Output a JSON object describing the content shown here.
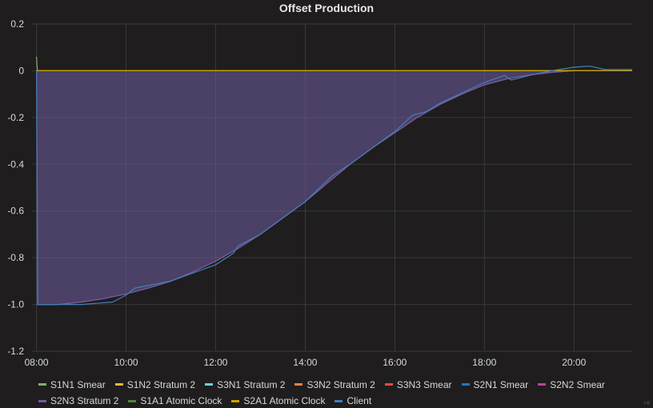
{
  "panel": {
    "title": "Offset Production"
  },
  "chart_data": {
    "type": "line",
    "title": "Offset Production",
    "x_tick_labels": [
      "08:00",
      "10:00",
      "12:00",
      "14:00",
      "16:00",
      "18:00",
      "20:00"
    ],
    "x_tick_hours": [
      8,
      10,
      12,
      14,
      16,
      18,
      20
    ],
    "xlim_hours": [
      7.9,
      21.3
    ],
    "y_tick_labels": [
      "0.2",
      "0",
      "-0.2",
      "-0.4",
      "-0.6",
      "-0.8",
      "-1.0",
      "-1.2"
    ],
    "y_tick_values": [
      0.2,
      0,
      -0.2,
      -0.4,
      -0.6,
      -0.8,
      -1.0,
      -1.2
    ],
    "ylim": [
      -1.2,
      0.2
    ],
    "grid": true,
    "legend_position": "bottom",
    "series": [
      {
        "name": "S1N1 Smear",
        "color": "#7eb26d",
        "points": [
          [
            8.0,
            0.06
          ],
          [
            8.02,
            0.0
          ],
          [
            21.3,
            0.0
          ]
        ]
      },
      {
        "name": "S1N2 Stratum 2",
        "color": "#eab839",
        "points": [
          [
            8.0,
            0.0
          ],
          [
            21.3,
            0.0
          ]
        ]
      },
      {
        "name": "S3N1 Stratum 2",
        "color": "#6ed0e0",
        "points": [
          [
            8.0,
            0.0
          ],
          [
            21.3,
            0.0
          ]
        ]
      },
      {
        "name": "S3N2 Stratum 2",
        "color": "#ef843c",
        "points": [
          [
            8.0,
            0.0
          ],
          [
            21.3,
            0.0
          ]
        ]
      },
      {
        "name": "S3N3 Smear",
        "color": "#e24d42",
        "points": [
          [
            8.0,
            0.0
          ],
          [
            21.3,
            0.0
          ]
        ]
      },
      {
        "name": "S2N1 Smear",
        "color": "#1f78c1",
        "points": [
          [
            8.0,
            0.0
          ],
          [
            21.3,
            0.0
          ]
        ]
      },
      {
        "name": "S2N2 Smear",
        "color": "#ba43a9",
        "points": [
          [
            8.0,
            -1.0
          ],
          [
            8.5,
            -1.0
          ],
          [
            9.0,
            -0.99
          ],
          [
            9.5,
            -0.975
          ],
          [
            10.0,
            -0.955
          ],
          [
            10.5,
            -0.93
          ],
          [
            11.0,
            -0.9
          ],
          [
            11.5,
            -0.86
          ],
          [
            12.0,
            -0.815
          ],
          [
            12.5,
            -0.76
          ],
          [
            13.0,
            -0.7
          ],
          [
            13.5,
            -0.63
          ],
          [
            14.0,
            -0.56
          ],
          [
            14.5,
            -0.48
          ],
          [
            15.0,
            -0.4
          ],
          [
            15.5,
            -0.33
          ],
          [
            16.0,
            -0.265
          ],
          [
            16.5,
            -0.2
          ],
          [
            17.0,
            -0.145
          ],
          [
            17.5,
            -0.1
          ],
          [
            18.0,
            -0.06
          ],
          [
            18.5,
            -0.035
          ],
          [
            19.0,
            -0.018
          ],
          [
            19.5,
            -0.007
          ],
          [
            20.0,
            0.0
          ],
          [
            21.3,
            0.0
          ]
        ]
      },
      {
        "name": "S2N3 Stratum 2",
        "color": "#705da0",
        "points": [
          [
            8.0,
            -1.0
          ],
          [
            8.5,
            -1.0
          ],
          [
            9.0,
            -0.99
          ],
          [
            9.5,
            -0.975
          ],
          [
            10.0,
            -0.955
          ],
          [
            10.5,
            -0.93
          ],
          [
            11.0,
            -0.9
          ],
          [
            11.5,
            -0.86
          ],
          [
            12.0,
            -0.815
          ],
          [
            12.5,
            -0.76
          ],
          [
            13.0,
            -0.7
          ],
          [
            13.5,
            -0.63
          ],
          [
            14.0,
            -0.56
          ],
          [
            14.5,
            -0.48
          ],
          [
            15.0,
            -0.4
          ],
          [
            15.5,
            -0.33
          ],
          [
            16.0,
            -0.265
          ],
          [
            16.5,
            -0.2
          ],
          [
            17.0,
            -0.145
          ],
          [
            17.5,
            -0.1
          ],
          [
            18.0,
            -0.06
          ],
          [
            18.5,
            -0.035
          ],
          [
            19.0,
            -0.018
          ],
          [
            19.5,
            -0.007
          ],
          [
            20.0,
            0.0
          ],
          [
            21.3,
            0.0
          ]
        ]
      },
      {
        "name": "S1A1 Atomic Clock",
        "color": "#508642",
        "points": [
          [
            8.0,
            0.0
          ],
          [
            21.3,
            0.0
          ]
        ]
      },
      {
        "name": "S2A1 Atomic Clock",
        "color": "#cca300",
        "points": [
          [
            8.0,
            0.0
          ],
          [
            21.3,
            0.0
          ]
        ]
      },
      {
        "name": "Client",
        "color": "#447ebc",
        "points": [
          [
            8.0,
            0.0
          ],
          [
            8.03,
            -1.0
          ],
          [
            9.0,
            -1.0
          ],
          [
            9.7,
            -0.99
          ],
          [
            10.0,
            -0.96
          ],
          [
            10.2,
            -0.93
          ],
          [
            11.0,
            -0.9
          ],
          [
            12.0,
            -0.83
          ],
          [
            12.4,
            -0.78
          ],
          [
            12.5,
            -0.75
          ],
          [
            13.0,
            -0.7
          ],
          [
            14.0,
            -0.56
          ],
          [
            14.6,
            -0.45
          ],
          [
            15.0,
            -0.4
          ],
          [
            16.0,
            -0.26
          ],
          [
            16.4,
            -0.19
          ],
          [
            16.7,
            -0.175
          ],
          [
            17.0,
            -0.14
          ],
          [
            18.0,
            -0.05
          ],
          [
            18.3,
            -0.03
          ],
          [
            18.45,
            -0.02
          ],
          [
            18.6,
            -0.04
          ],
          [
            19.0,
            -0.02
          ],
          [
            19.5,
            0.0
          ],
          [
            20.0,
            0.015
          ],
          [
            20.35,
            0.02
          ],
          [
            20.7,
            0.005
          ],
          [
            21.3,
            0.005
          ]
        ]
      }
    ]
  },
  "corner_mark": "+#"
}
